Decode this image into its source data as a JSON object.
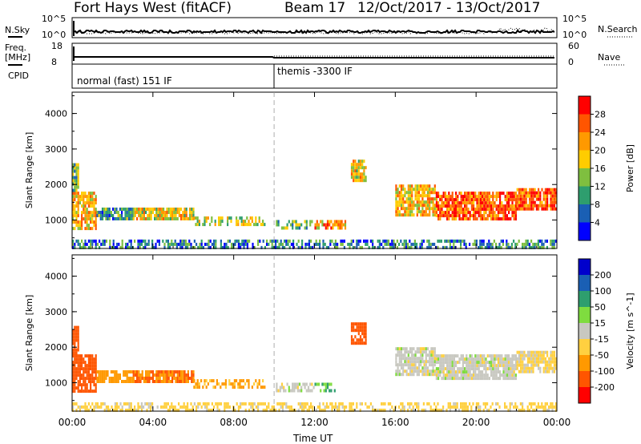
{
  "header": {
    "site": "Fort Hays West (fitACF)",
    "beam": "Beam 17",
    "date_range": "12/Oct/2017 - 13/Oct/2017"
  },
  "top_panels": {
    "nsky_label": "N.Sky",
    "nsky_ticks": [
      "10^5",
      "10^0"
    ],
    "nsearch_label": "N.Search",
    "nsearch_ticks": [
      "10^5",
      "10^0"
    ],
    "freq_label": "Freq.",
    "freq_unit": "[MHz]",
    "freq_ticks": [
      "18",
      "8"
    ],
    "nave_label": "Nave",
    "nave_ticks": [
      "60",
      "0"
    ],
    "cpid_label": "CPID",
    "cpid_segments": [
      {
        "label": "normal (fast) 151 IF",
        "start_hour": 0
      },
      {
        "label": "themis -3300 IF",
        "start_hour": 10
      }
    ]
  },
  "chart_data": [
    {
      "type": "heatmap",
      "name": "Power",
      "ylabel": "Slant Range [km]",
      "xlabel": "Time UT",
      "x_ticks": [
        "00:00",
        "04:00",
        "08:00",
        "12:00",
        "16:00",
        "20:00",
        "00:00"
      ],
      "y_ticks": [
        1000,
        2000,
        3000,
        4000
      ],
      "xlim_hours": [
        0,
        24
      ],
      "ylim_km": [
        200,
        4600
      ],
      "colorbar_label": "Power [dB]",
      "colorbar_ticks": [
        28,
        24,
        20,
        16,
        12,
        8,
        4
      ],
      "colorbar_colors": [
        "#ff0000",
        "#ff5500",
        "#ff9900",
        "#ffcc00",
        "#7fbf3f",
        "#2e9e6e",
        "#1a5fb4",
        "#0000ff"
      ],
      "regions": [
        {
          "t0": 0.0,
          "t1": 1.2,
          "r0": 800,
          "r1": 1800,
          "value": 20
        },
        {
          "t0": 0.0,
          "t1": 0.3,
          "r0": 1800,
          "r1": 2600,
          "value": 12
        },
        {
          "t0": 1.2,
          "t1": 3.0,
          "r0": 1050,
          "r1": 1350,
          "value": 10
        },
        {
          "t0": 3.0,
          "t1": 6.0,
          "r0": 1000,
          "r1": 1350,
          "value": 18
        },
        {
          "t0": 6.0,
          "t1": 9.5,
          "r0": 850,
          "r1": 1100,
          "value": 16
        },
        {
          "t0": 10.0,
          "t1": 12.0,
          "r0": 800,
          "r1": 1000,
          "value": 12
        },
        {
          "t0": 12.0,
          "t1": 13.5,
          "r0": 750,
          "r1": 1000,
          "value": 22
        },
        {
          "t0": 13.8,
          "t1": 14.5,
          "r0": 2100,
          "r1": 2700,
          "value": 18
        },
        {
          "t0": 16.0,
          "t1": 18.0,
          "r0": 1100,
          "r1": 2000,
          "value": 20
        },
        {
          "t0": 18.0,
          "t1": 22.0,
          "r0": 1000,
          "r1": 1800,
          "value": 26
        },
        {
          "t0": 22.0,
          "t1": 24.0,
          "r0": 1300,
          "r1": 1900,
          "value": 26
        },
        {
          "t0": 0.0,
          "t1": 24.0,
          "r0": 200,
          "r1": 450,
          "value": 8
        }
      ]
    },
    {
      "type": "heatmap",
      "name": "Velocity",
      "ylabel": "Slant Range [km]",
      "xlabel": "Time UT",
      "x_ticks": [
        "00:00",
        "04:00",
        "08:00",
        "12:00",
        "16:00",
        "20:00",
        "00:00"
      ],
      "y_ticks": [
        1000,
        2000,
        3000,
        4000
      ],
      "xlim_hours": [
        0,
        24
      ],
      "ylim_km": [
        200,
        4600
      ],
      "colorbar_label": "Velocity [m s^-1]",
      "colorbar_ticks": [
        200,
        100,
        50,
        15,
        -15,
        -50,
        -100,
        -200
      ],
      "colorbar_colors": [
        "#0000cc",
        "#1a5fb4",
        "#2e9e6e",
        "#7fdc3f",
        "#c8c8c0",
        "#ffd040",
        "#ff9900",
        "#ff5500",
        "#ff0000"
      ],
      "regions": [
        {
          "t0": 0.0,
          "t1": 1.2,
          "r0": 800,
          "r1": 1800,
          "value": -180
        },
        {
          "t0": 0.0,
          "t1": 0.3,
          "r0": 1800,
          "r1": 2600,
          "value": -120
        },
        {
          "t0": 1.2,
          "t1": 3.0,
          "r0": 1050,
          "r1": 1350,
          "value": -80
        },
        {
          "t0": 3.0,
          "t1": 6.0,
          "r0": 1000,
          "r1": 1350,
          "value": -100
        },
        {
          "t0": 6.0,
          "t1": 9.5,
          "r0": 850,
          "r1": 1100,
          "value": -60
        },
        {
          "t0": 10.0,
          "t1": 12.0,
          "r0": 800,
          "r1": 1000,
          "value": 0
        },
        {
          "t0": 12.0,
          "t1": 13.0,
          "r0": 750,
          "r1": 1000,
          "value": 40
        },
        {
          "t0": 13.8,
          "t1": 14.5,
          "r0": 2100,
          "r1": 2700,
          "value": -120
        },
        {
          "t0": 16.0,
          "t1": 18.0,
          "r0": 1200,
          "r1": 2000,
          "value": 0
        },
        {
          "t0": 18.0,
          "t1": 22.0,
          "r0": 1100,
          "r1": 1800,
          "value": 0
        },
        {
          "t0": 22.0,
          "t1": 24.0,
          "r0": 1300,
          "r1": 1900,
          "value": -20
        },
        {
          "t0": 0.0,
          "t1": 24.0,
          "r0": 200,
          "r1": 450,
          "value": -30
        }
      ]
    }
  ]
}
